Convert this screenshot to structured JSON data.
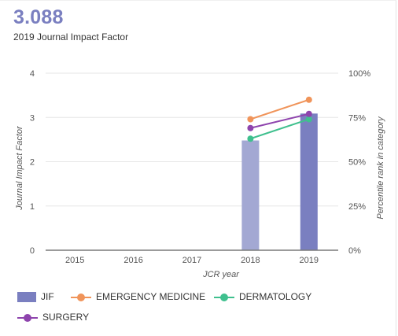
{
  "header": {
    "value": "3.088",
    "label": "2019 Journal Impact Factor"
  },
  "chart_data": {
    "type": "bar",
    "categories": [
      "2015",
      "2016",
      "2017",
      "2018",
      "2019"
    ],
    "xlabel": "JCR year",
    "ylabel": "Journal Impact Factor",
    "ylabel_right": "Percentile rank in category",
    "ylim": [
      0,
      4
    ],
    "ylim_right": [
      0,
      100
    ],
    "yticks": [
      "0",
      "1",
      "2",
      "3",
      "4"
    ],
    "yticks_right": [
      "0%",
      "25%",
      "50%",
      "75%",
      "100%"
    ],
    "grid": true,
    "legend_position": "bottom",
    "bars": {
      "name": "JIF",
      "values": [
        null,
        null,
        null,
        2.48,
        3.088
      ],
      "colors": [
        null,
        null,
        null,
        "#a3a8d3",
        "#7a7fc0"
      ]
    },
    "series": [
      {
        "name": "EMERGENCY MEDICINE",
        "axis": "right",
        "color": "#f0945a",
        "values": [
          null,
          null,
          null,
          74,
          85
        ]
      },
      {
        "name": "DERMATOLOGY",
        "axis": "right",
        "color": "#3fc08e",
        "values": [
          null,
          null,
          null,
          63,
          74
        ]
      },
      {
        "name": "SURGERY",
        "axis": "right",
        "color": "#8e44ad",
        "values": [
          null,
          null,
          null,
          69,
          77
        ]
      }
    ]
  }
}
